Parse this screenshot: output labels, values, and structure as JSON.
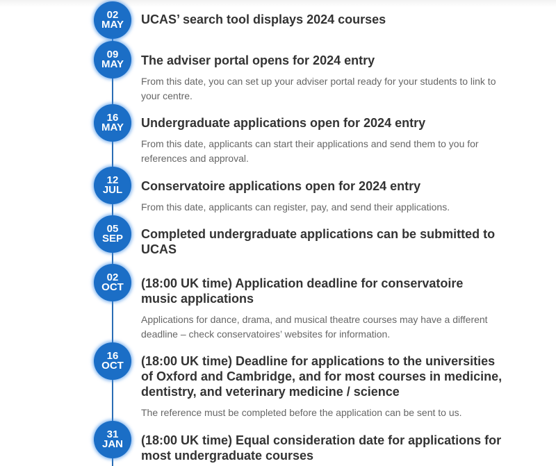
{
  "accent_color": "#1b6ec6",
  "items": [
    {
      "day": "02",
      "month": "MAY",
      "title": "UCAS’ search tool displays 2024 courses",
      "desc": ""
    },
    {
      "day": "09",
      "month": "MAY",
      "title": "The adviser portal opens for 2024 entry",
      "desc": "From this date, you can set up your adviser portal ready for your students to link to your centre."
    },
    {
      "day": "16",
      "month": "MAY",
      "title": "Undergraduate applications open for 2024 entry",
      "desc": "From this date, applicants can start their applications and send them to you for references and approval."
    },
    {
      "day": "12",
      "month": "JUL",
      "title": "Conservatoire applications open for 2024 entry",
      "desc": "From this date, applicants can register, pay, and send their applications."
    },
    {
      "day": "05",
      "month": "SEP",
      "title": "Completed undergraduate applications can be submitted to UCAS",
      "desc": ""
    },
    {
      "day": "02",
      "month": "OCT",
      "title": "(18:00 UK time) Application deadline for conservatoire music applications",
      "desc": "Applications for dance, drama, and musical theatre courses may have a different deadline – check conservatoires’ websites for information."
    },
    {
      "day": "16",
      "month": "OCT",
      "title": "(18:00 UK time) Deadline for applications to the universities of Oxford and Cambridge, and for most courses in medicine, dentistry, and veterinary medicine / science",
      "desc": "The reference must be completed before the application can be sent to us."
    },
    {
      "day": "31",
      "month": "JAN",
      "title": "(18:00 UK time) Equal consideration date for applications for most undergraduate courses",
      "desc": ""
    }
  ]
}
